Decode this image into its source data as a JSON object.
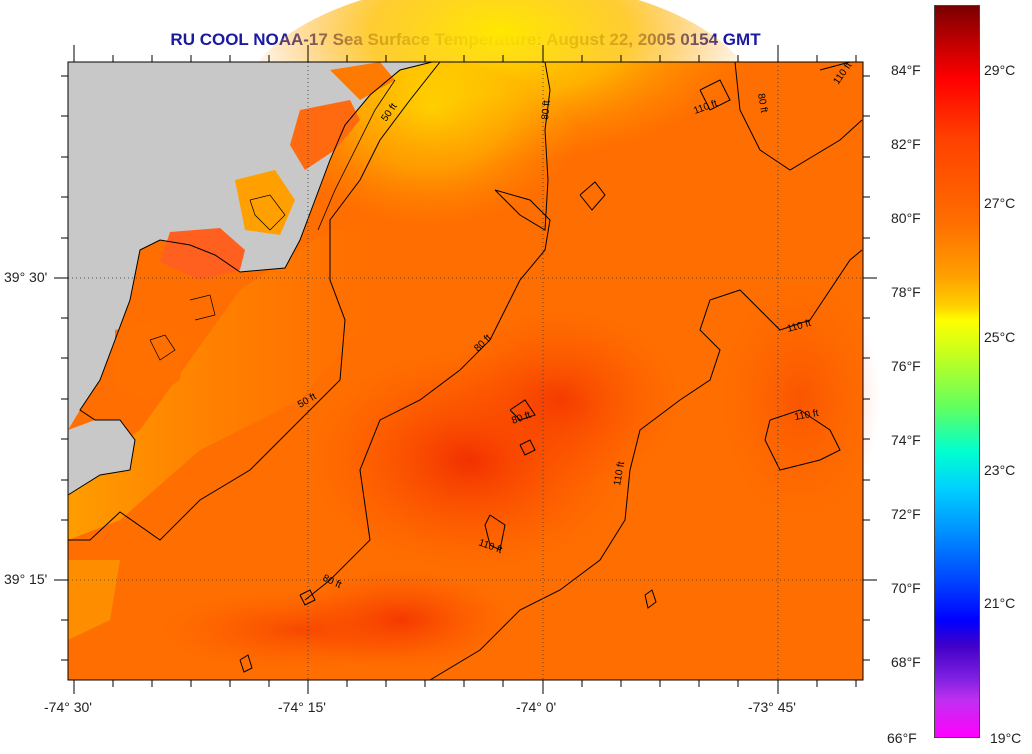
{
  "title": "RU COOL  NOAA-17  Sea Surface Temperature:  August 22, 2005 0154 GMT",
  "map": {
    "lat_labels": [
      "39° 30'",
      "39° 15'"
    ],
    "lon_labels": [
      "-74° 30'",
      "-74° 15'",
      "-74° 0'",
      "-73° 45'"
    ],
    "contour_labels": [
      "50 ft",
      "50 ft",
      "80 ft",
      "80 ft",
      "80 ft",
      "80 ft",
      "80 ft",
      "110 ft",
      "110 ft",
      "110 ft",
      "110 ft",
      "110 ft",
      "110 ft"
    ],
    "colors": {
      "land": "#c8c8c8",
      "water_dominant": "#ff6a00",
      "nearshore_warm": "#ffd000"
    }
  },
  "colorbar": {
    "fahrenheit_labels": [
      "84°F",
      "82°F",
      "80°F",
      "78°F",
      "76°F",
      "74°F",
      "72°F",
      "70°F",
      "68°F",
      "66°F"
    ],
    "celsius_labels": [
      "29°C",
      "27°C",
      "25°C",
      "23°C",
      "21°C",
      "19°C"
    ]
  }
}
